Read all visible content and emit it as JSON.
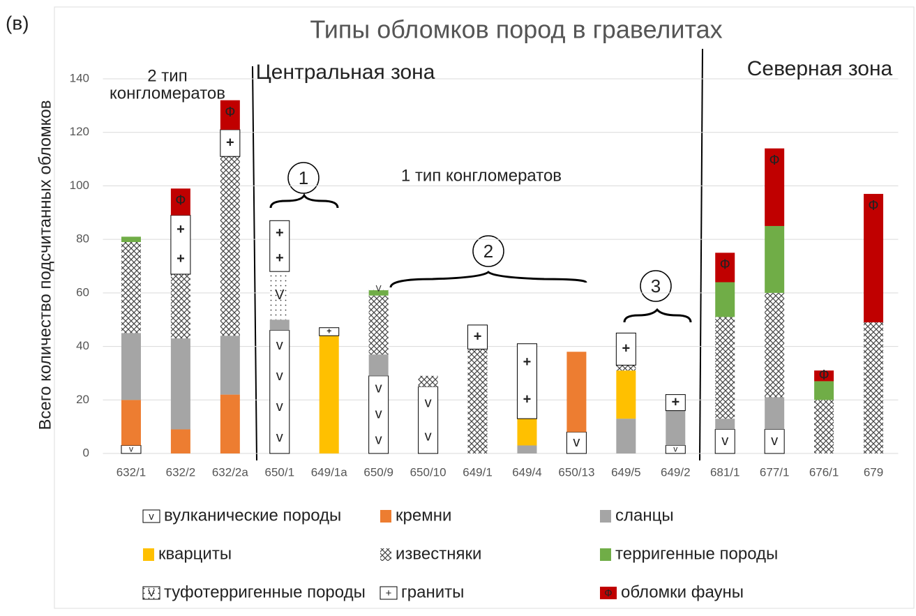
{
  "chart_data": {
    "type": "stacked_bar",
    "title": "Типы обломков пород в гравелитах",
    "y_label": "Всего количество подсчитанных обломков",
    "panel_label": "(в)",
    "annotations": [
      "Центральная зона",
      "Северная зона",
      "2 тип",
      "конгломератов",
      "1 тип конгломератов",
      "1",
      "2",
      "3"
    ],
    "categories": [
      "632/1",
      "632/2",
      "632/2a",
      "650/1",
      "649/1a",
      "650/9",
      "650/10",
      "649/1",
      "649/4",
      "650/13",
      "649/5",
      "649/2",
      "681/1",
      "677/1",
      "676/1",
      "679"
    ],
    "ylim": [
      0,
      140
    ],
    "yticks": [
      0,
      20,
      40,
      60,
      80,
      100,
      120,
      140
    ],
    "grid": true,
    "series": [
      {
        "name": "вулканические породы",
        "color": "#ffffff",
        "symbol": "v",
        "values": [
          3,
          0,
          0,
          46,
          0,
          29,
          25,
          0,
          0,
          8,
          0,
          3,
          9,
          9,
          0,
          0
        ]
      },
      {
        "name": "кремни",
        "color": "#ed7d31",
        "values": [
          17,
          9,
          22,
          0,
          0,
          0,
          0,
          0,
          0,
          30,
          0,
          0,
          0,
          0,
          0,
          0
        ]
      },
      {
        "name": "сланцы",
        "color": "#a5a5a5",
        "values": [
          25,
          34,
          22,
          4,
          0,
          8,
          0,
          0,
          3,
          0,
          13,
          13,
          4,
          12,
          0,
          0
        ]
      },
      {
        "name": "кварциты",
        "color": "#ffc000",
        "values": [
          0,
          0,
          0,
          0,
          44,
          0,
          0,
          0,
          10,
          0,
          18,
          0,
          0,
          0,
          0,
          0
        ]
      },
      {
        "name": "известняки",
        "color": "hatch",
        "values": [
          34,
          24,
          67,
          0,
          0,
          22,
          4,
          39,
          0,
          0,
          2,
          0,
          38,
          39,
          20,
          49
        ]
      },
      {
        "name": "терригенные породы",
        "color": "#70ad47",
        "values": [
          2,
          0,
          0,
          0,
          0,
          2,
          0,
          0,
          0,
          0,
          0,
          0,
          13,
          25,
          7,
          0
        ]
      },
      {
        "name": "туфотерригенные породы",
        "color": "dots",
        "symbol": "V",
        "values": [
          0,
          0,
          0,
          18,
          0,
          1,
          0,
          0,
          0,
          0,
          0,
          0,
          0,
          0,
          0,
          0
        ]
      },
      {
        "name": "граниты",
        "color": "#ffffff",
        "symbol": "+",
        "values": [
          0,
          22,
          10,
          19,
          3,
          0,
          0,
          9,
          28,
          0,
          12,
          6,
          0,
          0,
          0,
          0
        ]
      },
      {
        "name": "обломки фауны",
        "color": "#c00000",
        "symbol": "Ф",
        "values": [
          0,
          10,
          11,
          0,
          0,
          0,
          0,
          0,
          0,
          0,
          0,
          0,
          11,
          29,
          4,
          48
        ]
      }
    ]
  }
}
